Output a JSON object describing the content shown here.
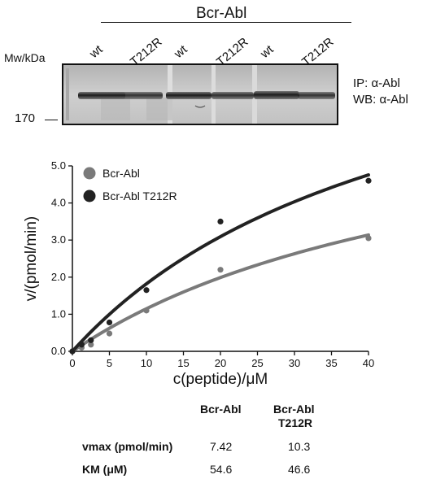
{
  "blot": {
    "title": "Bcr-Abl",
    "mw_label": "Mw/kDa",
    "marker_label": "170",
    "lanes": [
      "wt",
      "T212R",
      "wt",
      "T212R",
      "wt",
      "T212R"
    ],
    "ip_label": "IP: α-Abl",
    "wb_label": "WB: α-Abl"
  },
  "chart_data": {
    "type": "scatter",
    "xlabel": "c(peptide)/μM",
    "ylabel": "v/(pmol/min)",
    "xlim": [
      0,
      40
    ],
    "ylim": [
      0,
      5.0
    ],
    "xticks": [
      "0",
      "5",
      "10",
      "15",
      "20",
      "25",
      "30",
      "35",
      "40"
    ],
    "yticks": [
      "0.0",
      "1.0",
      "2.0",
      "3.0",
      "4.0",
      "5.0"
    ],
    "grid": false,
    "legend_position": "top-left",
    "series": [
      {
        "name": "Bcr-Abl",
        "color": "#7a7a7a",
        "x": [
          0,
          1.25,
          2.5,
          5,
          10,
          20,
          40
        ],
        "y": [
          0,
          0.1,
          0.18,
          0.48,
          1.1,
          2.2,
          3.05
        ],
        "fit": {
          "model": "Michaelis-Menten",
          "vmax": 7.42,
          "km": 54.6
        }
      },
      {
        "name": "Bcr-Abl T212R",
        "color": "#222222",
        "x": [
          0,
          1.25,
          2.5,
          5,
          10,
          20,
          40
        ],
        "y": [
          0,
          0.18,
          0.3,
          0.78,
          1.65,
          3.5,
          4.6
        ],
        "fit": {
          "model": "Michaelis-Menten",
          "vmax": 10.3,
          "km": 46.6
        }
      }
    ]
  },
  "kinetics_table": {
    "col1_header": "Bcr-Abl",
    "col2_header_line1": "Bcr-Abl",
    "col2_header_line2": "T212R",
    "vmax_label": "vmax (pmol/min)",
    "km_label": "KM (μM)",
    "vmax_values": [
      "7.42",
      "10.3"
    ],
    "km_values": [
      "54.6",
      "46.6"
    ]
  }
}
